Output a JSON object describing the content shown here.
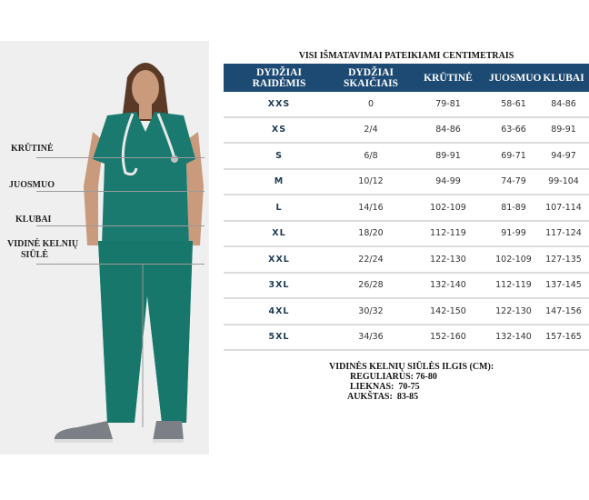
{
  "left_panel": {
    "labels": {
      "chest": "KRŪTINĖ",
      "waist": "JUOSMUO",
      "hips": "KLUBAI",
      "inseam_line1": "VIDINĖ KELNIŲ",
      "inseam_line2": "SIŪLĖ"
    },
    "garment_color": "#1a7a70"
  },
  "title": "VISI IŠMATAVIMAI PATEIKIAMI CENTIMETRAIS",
  "table": {
    "header_color": "#1d4a73",
    "headers": [
      {
        "line1": "DYDŽIAI",
        "line2": "RAIDĖMIS"
      },
      {
        "line1": "DYDŽIAI",
        "line2": "SKAIČIAIS"
      },
      {
        "line1": "KRŪTINĖ",
        "line2": ""
      },
      {
        "line1": "JUOSMUO",
        "line2": ""
      },
      {
        "line1": "KLUBAI",
        "line2": ""
      }
    ],
    "rows": [
      [
        "XXS",
        "0",
        "79-81",
        "58-61",
        "84-86"
      ],
      [
        "XS",
        "2/4",
        "84-86",
        "63-66",
        "89-91"
      ],
      [
        "S",
        "6/8",
        "89-91",
        "69-71",
        "94-97"
      ],
      [
        "M",
        "10/12",
        "94-99",
        "74-79",
        "99-104"
      ],
      [
        "L",
        "14/16",
        "102-109",
        "81-89",
        "107-114"
      ],
      [
        "XL",
        "18/20",
        "112-119",
        "91-99",
        "117-124"
      ],
      [
        "XXL",
        "22/24",
        "122-130",
        "102-109",
        "127-135"
      ],
      [
        "3XL",
        "26/28",
        "132-140",
        "112-119",
        "137-145"
      ],
      [
        "4XL",
        "30/32",
        "142-150",
        "122-130",
        "147-156"
      ],
      [
        "5XL",
        "34/36",
        "152-160",
        "132-140",
        "157-165"
      ]
    ]
  },
  "inseam": {
    "title": "VIDINĖS KELNIŲ SIŪLĖS ILGIS (CM):",
    "regular": "REGULIARUS: 76-80",
    "petite": "LIEKNAS:  70-75",
    "tall": "AUKŠTAS:  83-85"
  }
}
